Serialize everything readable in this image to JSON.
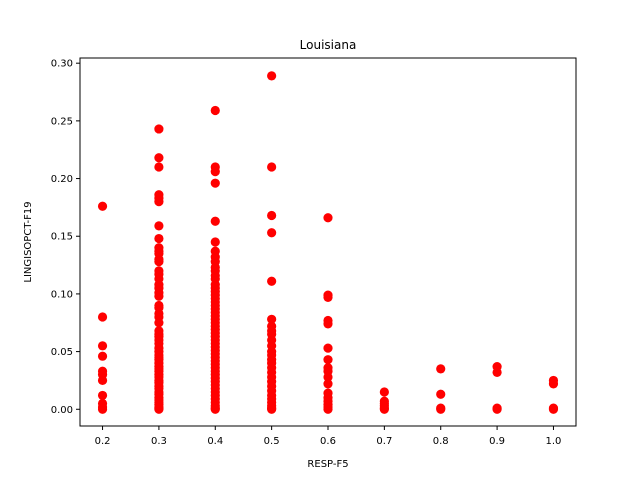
{
  "chart_data": {
    "type": "scatter",
    "title": "Louisiana",
    "xlabel": "RESP-F5",
    "ylabel": "LINGISOPCT-F19",
    "xlim": [
      0.16,
      1.04
    ],
    "ylim": [
      -0.0145,
      0.3045
    ],
    "xticks": [
      0.2,
      0.3,
      0.4,
      0.5,
      0.6,
      0.7,
      0.8,
      0.9,
      1.0
    ],
    "xtick_labels": [
      "0.2",
      "0.3",
      "0.4",
      "0.5",
      "0.6",
      "0.7",
      "0.8",
      "0.9",
      "1.0"
    ],
    "yticks": [
      0.0,
      0.05,
      0.1,
      0.15,
      0.2,
      0.25,
      0.3
    ],
    "ytick_labels": [
      "0.00",
      "0.05",
      "0.10",
      "0.15",
      "0.20",
      "0.25",
      "0.30"
    ],
    "grid": false,
    "marker_color": "#ff0000",
    "series": [
      {
        "x": 0.2,
        "y": [
          0.176,
          0.08,
          0.055,
          0.046,
          0.033,
          0.03,
          0.025,
          0.012,
          0.005,
          0.002,
          0.0
        ]
      },
      {
        "x": 0.3,
        "y": [
          0.243,
          0.218,
          0.21,
          0.186,
          0.183,
          0.18,
          0.159,
          0.148,
          0.14,
          0.137,
          0.135,
          0.13,
          0.128,
          0.12,
          0.117,
          0.113,
          0.108,
          0.105,
          0.101,
          0.098,
          0.09,
          0.088,
          0.083,
          0.08,
          0.075,
          0.068,
          0.065,
          0.063,
          0.06,
          0.057,
          0.053,
          0.05,
          0.047,
          0.045,
          0.043,
          0.04,
          0.037,
          0.035,
          0.033,
          0.03,
          0.028,
          0.025,
          0.023,
          0.02,
          0.018,
          0.015,
          0.013,
          0.01,
          0.008,
          0.006,
          0.004,
          0.002,
          0.001,
          0.0
        ]
      },
      {
        "x": 0.4,
        "y": [
          0.259,
          0.21,
          0.206,
          0.196,
          0.163,
          0.145,
          0.137,
          0.132,
          0.128,
          0.123,
          0.12,
          0.116,
          0.113,
          0.108,
          0.105,
          0.102,
          0.099,
          0.096,
          0.093,
          0.09,
          0.087,
          0.084,
          0.081,
          0.078,
          0.075,
          0.072,
          0.069,
          0.066,
          0.063,
          0.06,
          0.057,
          0.054,
          0.051,
          0.048,
          0.045,
          0.042,
          0.039,
          0.036,
          0.033,
          0.03,
          0.027,
          0.024,
          0.021,
          0.018,
          0.015,
          0.012,
          0.009,
          0.006,
          0.003,
          0.001,
          0.0
        ]
      },
      {
        "x": 0.5,
        "y": [
          0.289,
          0.21,
          0.168,
          0.153,
          0.111,
          0.078,
          0.072,
          0.068,
          0.065,
          0.06,
          0.055,
          0.05,
          0.047,
          0.043,
          0.04,
          0.036,
          0.032,
          0.028,
          0.024,
          0.02,
          0.016,
          0.012,
          0.009,
          0.006,
          0.003,
          0.001,
          0.0
        ]
      },
      {
        "x": 0.6,
        "y": [
          0.166,
          0.099,
          0.097,
          0.077,
          0.074,
          0.053,
          0.043,
          0.036,
          0.033,
          0.028,
          0.022,
          0.014,
          0.01,
          0.007,
          0.004,
          0.002,
          0.0
        ]
      },
      {
        "x": 0.7,
        "y": [
          0.015,
          0.007,
          0.005,
          0.003,
          0.001,
          0.0
        ]
      },
      {
        "x": 0.8,
        "y": [
          0.035,
          0.013,
          0.001,
          0.0
        ]
      },
      {
        "x": 0.9,
        "y": [
          0.037,
          0.032,
          0.001,
          0.0
        ]
      },
      {
        "x": 1.0,
        "y": [
          0.025,
          0.022,
          0.001,
          0.0
        ]
      }
    ]
  }
}
